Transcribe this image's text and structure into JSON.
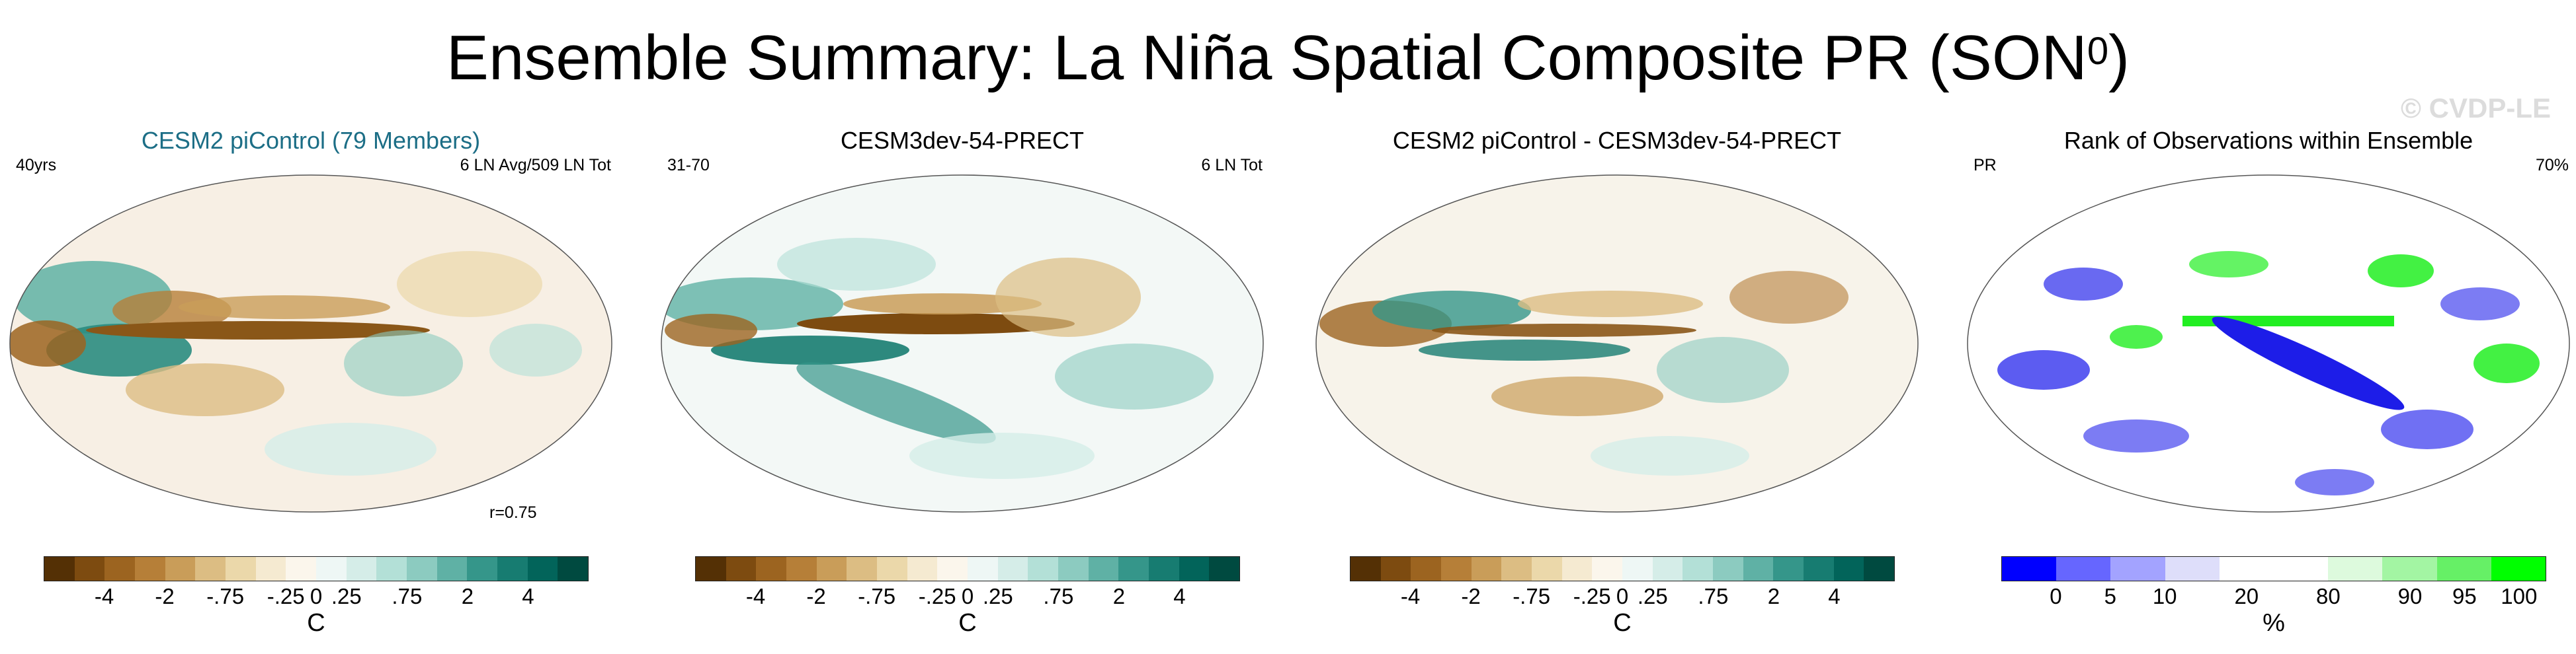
{
  "header": {
    "title_main": "Ensemble Summary: La Niña Spatial Composite PR (SON",
    "title_sup": "0",
    "title_end": ")",
    "watermark": "© CVDP-LE"
  },
  "panels": [
    {
      "title": "CESM2 piControl (79 Members)",
      "left_label": "40yrs",
      "right_label": "6 LN Avg/509 LN Tot",
      "corr_label": "r=0.75",
      "colorbar_unit": "C",
      "colorbar_ticks": [
        "-4",
        "-2",
        "-.75",
        "-.25",
        "0",
        ".25",
        ".75",
        "2",
        "4"
      ]
    },
    {
      "title": "CESM3dev-54-PRECT",
      "left_label": "31-70",
      "right_label": "6 LN Tot",
      "colorbar_unit": "C",
      "colorbar_ticks": [
        "-4",
        "-2",
        "-.75",
        "-.25",
        "0",
        ".25",
        ".75",
        "2",
        "4"
      ]
    },
    {
      "title": "CESM2 piControl - CESM3dev-54-PRECT",
      "colorbar_unit": "C",
      "colorbar_ticks": [
        "-4",
        "-2",
        "-.75",
        "-.25",
        "0",
        ".25",
        ".75",
        "2",
        "4"
      ]
    },
    {
      "title": "Rank of Observations within Ensemble",
      "left_label": "PR",
      "right_label": "70%",
      "colorbar_unit": "%",
      "colorbar_ticks": [
        "0",
        "5",
        "10",
        "20",
        "80",
        "90",
        "95",
        "100"
      ]
    }
  ],
  "colors": {
    "diverging": [
      "#543005",
      "#7d4b10",
      "#9c6420",
      "#b67f38",
      "#c99d59",
      "#dcbd83",
      "#ebd8aa",
      "#f5ead1",
      "#fbf6ec",
      "#eef7f5",
      "#d5ede8",
      "#b3e0d7",
      "#8ccbc0",
      "#5fb1a5",
      "#35968a",
      "#177c71",
      "#02645a",
      "#004a40"
    ],
    "rank": [
      "#0000ff",
      "#6666ff",
      "#a3a3ff",
      "#dedefa",
      "#ffffff",
      "#ffffff",
      "#ddfadd",
      "#a3f5a3",
      "#66f066",
      "#00ff00"
    ],
    "map_fill": "#f7efe4",
    "enso_brown": "#8a5718",
    "enso_teal": "#2a8c80",
    "rank_blue": "#1d1de8",
    "rank_green": "#22ee22"
  }
}
